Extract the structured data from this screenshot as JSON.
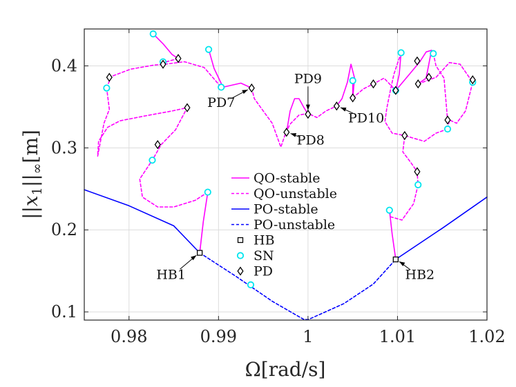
{
  "chart_data": {
    "type": "line",
    "title": "",
    "xlabel": "Ω[rad/s]",
    "ylabel": "||x1||∞[m]",
    "ylabel_parts": [
      "||",
      "x",
      "1",
      "||",
      "∞",
      "[m]"
    ],
    "xlim": [
      0.975,
      1.02
    ],
    "ylim": [
      0.09,
      0.445
    ],
    "x_ticks": [
      0.98,
      0.99,
      1.0,
      1.01,
      1.02
    ],
    "x_tick_labels": [
      "0.98",
      "0.99",
      "1",
      "1.01",
      "1.02"
    ],
    "y_ticks": [
      0.1,
      0.2,
      0.3,
      0.4
    ],
    "y_tick_labels": [
      "0.1",
      "0.2",
      "0.3",
      "0.4"
    ],
    "grid": true,
    "legend_position": "center",
    "colors": {
      "qo": "#ff00ff",
      "po": "#0000ff",
      "sn": "#00e5ee",
      "marker": "#000000",
      "axis": "#262626"
    },
    "legend": [
      {
        "label": "QO-stable",
        "kind": "line",
        "color": "#ff00ff",
        "dashed": false
      },
      {
        "label": "QO-unstable",
        "kind": "line",
        "color": "#ff00ff",
        "dashed": true
      },
      {
        "label": "PO-stable",
        "kind": "line",
        "color": "#0000ff",
        "dashed": false
      },
      {
        "label": "PO-unstable",
        "kind": "line",
        "color": "#0000ff",
        "dashed": true
      },
      {
        "label": "HB",
        "kind": "square",
        "color": "#000000"
      },
      {
        "label": "SN",
        "kind": "circle",
        "color": "#00e5ee"
      },
      {
        "label": "PD",
        "kind": "diamond",
        "color": "#000000"
      }
    ],
    "series": [
      {
        "name": "PO-stable (left)",
        "style": "solid",
        "color": "#0000ff",
        "points": [
          [
            0.975,
            0.249
          ],
          [
            0.98,
            0.2294
          ],
          [
            0.985,
            0.2049
          ],
          [
            0.9879,
            0.172
          ]
        ]
      },
      {
        "name": "PO-unstable",
        "style": "dashed",
        "color": "#0000ff",
        "points": [
          [
            0.9879,
            0.172
          ],
          [
            0.992,
            0.143
          ],
          [
            0.996,
            0.113
          ],
          [
            0.9995,
            0.091
          ],
          [
            1.0,
            0.0905
          ],
          [
            1.004,
            0.11
          ],
          [
            1.0073,
            0.134
          ],
          [
            1.0098,
            0.164
          ]
        ]
      },
      {
        "name": "PO-stable (right)",
        "style": "solid",
        "color": "#0000ff",
        "points": [
          [
            1.0098,
            0.164
          ],
          [
            1.015,
            0.202
          ],
          [
            1.02,
            0.24
          ]
        ]
      },
      {
        "name": "QO-stable L1",
        "style": "solid",
        "color": "#ff00ff",
        "points": [
          [
            0.9879,
            0.172
          ],
          [
            0.9883,
            0.21
          ],
          [
            0.9888,
            0.246
          ]
        ]
      },
      {
        "name": "QO-unstable L1",
        "style": "dashed",
        "color": "#ff00ff",
        "points": [
          [
            0.9888,
            0.246
          ],
          [
            0.9874,
            0.236
          ],
          [
            0.985,
            0.228
          ],
          [
            0.9832,
            0.228
          ],
          [
            0.9815,
            0.24
          ],
          [
            0.9812,
            0.262
          ],
          [
            0.9826,
            0.285
          ],
          [
            0.9836,
            0.304
          ],
          [
            0.9852,
            0.322
          ],
          [
            0.9865,
            0.349
          ],
          [
            0.9848,
            0.345
          ],
          [
            0.9818,
            0.339
          ],
          [
            0.979,
            0.333
          ],
          [
            0.9776,
            0.325
          ],
          [
            0.9766,
            0.308
          ],
          [
            0.9765,
            0.29
          ],
          [
            0.9772,
            0.33
          ],
          [
            0.9778,
            0.347
          ],
          [
            0.9775,
            0.373
          ]
        ]
      },
      {
        "name": "QO-unstable L2",
        "style": "dashed",
        "color": "#ff00ff",
        "points": [
          [
            0.9775,
            0.373
          ],
          [
            0.978,
            0.387
          ],
          [
            0.9802,
            0.396
          ],
          [
            0.9828,
            0.401
          ],
          [
            0.984,
            0.402
          ],
          [
            0.9862,
            0.405
          ],
          [
            0.9884,
            0.398
          ],
          [
            0.9903,
            0.374
          ]
        ]
      },
      {
        "name": "QO-stable L2",
        "style": "solid",
        "color": "#ff00ff",
        "points": [
          [
            0.9827,
            0.439
          ],
          [
            0.9838,
            0.427
          ],
          [
            0.9848,
            0.414
          ],
          [
            0.9855,
            0.409
          ]
        ]
      },
      {
        "name": "QO-unstable L3",
        "style": "dashed",
        "color": "#ff00ff",
        "points": [
          [
            0.9855,
            0.409
          ],
          [
            0.9842,
            0.405
          ],
          [
            0.984,
            0.402
          ]
        ]
      },
      {
        "name": "QO-stable L3",
        "style": "solid",
        "color": "#ff00ff",
        "points": [
          [
            0.9889,
            0.42
          ],
          [
            0.9895,
            0.397
          ],
          [
            0.9905,
            0.374
          ]
        ]
      },
      {
        "name": "QO-stable L4",
        "style": "solid",
        "color": "#ff00ff",
        "points": [
          [
            0.9905,
            0.374
          ],
          [
            0.9925,
            0.379
          ],
          [
            0.9937,
            0.373
          ]
        ]
      },
      {
        "name": "QO-unstable L4",
        "style": "dashed",
        "color": "#ff00ff",
        "points": [
          [
            0.9937,
            0.373
          ],
          [
            0.994,
            0.36
          ],
          [
            0.995,
            0.345
          ],
          [
            0.996,
            0.33
          ],
          [
            0.997,
            0.3
          ]
        ]
      },
      {
        "name": "QO-unstable L5",
        "style": "dashed",
        "color": "#ff00ff",
        "points": [
          [
            0.997,
            0.302
          ],
          [
            0.9975,
            0.318
          ],
          [
            0.998,
            0.329
          ],
          [
            0.999,
            0.34
          ],
          [
            1.0,
            0.342
          ],
          [
            1.001,
            0.337
          ],
          [
            1.002,
            0.345
          ],
          [
            1.0032,
            0.351
          ]
        ]
      },
      {
        "name": "QO-stable L5",
        "style": "solid",
        "color": "#ff00ff",
        "points": [
          [
            0.9976,
            0.319
          ],
          [
            0.998,
            0.345
          ],
          [
            0.9985,
            0.36
          ],
          [
            0.999,
            0.36
          ],
          [
            0.9995,
            0.35
          ],
          [
            1.0,
            0.341
          ]
        ]
      },
      {
        "name": "QO-stable L6",
        "style": "solid",
        "color": "#ff00ff",
        "points": [
          [
            1.0032,
            0.351
          ],
          [
            1.0038,
            0.36
          ],
          [
            1.0044,
            0.38
          ],
          [
            1.0048,
            0.402
          ],
          [
            1.0052,
            0.385
          ],
          [
            1.005,
            0.361
          ]
        ]
      },
      {
        "name": "QO-stable L7",
        "style": "solid",
        "color": "#ff00ff",
        "points": [
          [
            1.005,
            0.382
          ],
          [
            1.005,
            0.368
          ],
          [
            1.005,
            0.361
          ]
        ]
      },
      {
        "name": "QO-unstable L6",
        "style": "dashed",
        "color": "#ff00ff",
        "points": [
          [
            1.005,
            0.361
          ],
          [
            1.0062,
            0.372
          ],
          [
            1.0073,
            0.378
          ],
          [
            1.0085,
            0.385
          ],
          [
            1.0098,
            0.37
          ]
        ]
      },
      {
        "name": "QO-stable L8",
        "style": "solid",
        "color": "#ff00ff",
        "points": [
          [
            1.0098,
            0.37
          ],
          [
            1.0102,
            0.39
          ],
          [
            1.0104,
            0.416
          ]
        ]
      },
      {
        "name": "QO-stable L9",
        "style": "solid",
        "color": "#ff00ff",
        "points": [
          [
            1.0098,
            0.37
          ],
          [
            1.0115,
            0.392
          ],
          [
            1.0125,
            0.405
          ],
          [
            1.0132,
            0.417
          ],
          [
            1.0138,
            0.419
          ],
          [
            1.0132,
            0.385
          ],
          [
            1.0123,
            0.378
          ]
        ]
      },
      {
        "name": "QO-unstable L7",
        "style": "dashed",
        "color": "#ff00ff",
        "points": [
          [
            1.0123,
            0.378
          ],
          [
            1.0143,
            0.386
          ],
          [
            1.0158,
            0.404
          ],
          [
            1.017,
            0.402
          ],
          [
            1.0184,
            0.38
          ],
          [
            1.0176,
            0.345
          ],
          [
            1.0166,
            0.33
          ],
          [
            1.0158,
            0.334
          ],
          [
            1.0156,
            0.323
          ]
        ]
      },
      {
        "name": "QO-unstable L8",
        "style": "dashed",
        "color": "#ff00ff",
        "points": [
          [
            1.0156,
            0.323
          ],
          [
            1.0143,
            0.318
          ],
          [
            1.013,
            0.308
          ],
          [
            1.0108,
            0.315
          ],
          [
            1.0106,
            0.295
          ],
          [
            1.0115,
            0.282
          ],
          [
            1.0122,
            0.271
          ],
          [
            1.0123,
            0.255
          ],
          [
            1.0118,
            0.232
          ],
          [
            1.0105,
            0.212
          ],
          [
            1.0092,
            0.216
          ],
          [
            1.0091,
            0.224
          ]
        ]
      },
      {
        "name": "QO-stable L10",
        "style": "solid",
        "color": "#ff00ff",
        "points": [
          [
            1.0091,
            0.224
          ],
          [
            1.0094,
            0.195
          ],
          [
            1.0098,
            0.164
          ]
        ]
      },
      {
        "name": "QO-unstable L9",
        "style": "dashed",
        "color": "#ff00ff",
        "points": [
          [
            1.014,
            0.415
          ],
          [
            1.0143,
            0.4
          ],
          [
            1.0152,
            0.385
          ],
          [
            1.0156,
            0.333
          ]
        ]
      },
      {
        "name": "QO-unstable L10",
        "style": "dashed",
        "color": "#ff00ff",
        "points": [
          [
            1.0104,
            0.416
          ],
          [
            1.0096,
            0.39
          ],
          [
            1.0092,
            0.37
          ],
          [
            1.0088,
            0.348
          ],
          [
            1.0086,
            0.332
          ],
          [
            1.0094,
            0.318
          ],
          [
            1.0108,
            0.315
          ]
        ]
      }
    ],
    "markers": {
      "HB": [
        [
          0.9879,
          0.172
        ],
        [
          1.0098,
          0.164
        ]
      ],
      "SN": [
        [
          0.9827,
          0.439
        ],
        [
          0.9775,
          0.373
        ],
        [
          0.9838,
          0.405
        ],
        [
          0.9826,
          0.285
        ],
        [
          0.9888,
          0.246
        ],
        [
          0.9889,
          0.42
        ],
        [
          0.9903,
          0.374
        ],
        [
          0.9936,
          0.133
        ],
        [
          1.005,
          0.382
        ],
        [
          1.0098,
          0.37
        ],
        [
          1.0104,
          0.416
        ],
        [
          1.014,
          0.415
        ],
        [
          1.0184,
          0.38
        ],
        [
          1.0156,
          0.323
        ],
        [
          1.0123,
          0.255
        ],
        [
          1.0091,
          0.224
        ]
      ],
      "PD": [
        [
          0.9778,
          0.386
        ],
        [
          0.9838,
          0.402
        ],
        [
          0.9855,
          0.409
        ],
        [
          0.9865,
          0.349
        ],
        [
          0.9832,
          0.304
        ],
        [
          0.9937,
          0.373
        ],
        [
          0.9976,
          0.319
        ],
        [
          1.0,
          0.341
        ],
        [
          1.0032,
          0.351
        ],
        [
          1.005,
          0.361
        ],
        [
          1.0073,
          0.378
        ],
        [
          1.0098,
          0.37
        ],
        [
          1.0122,
          0.406
        ],
        [
          1.0123,
          0.378
        ],
        [
          1.0135,
          0.386
        ],
        [
          1.0184,
          0.383
        ],
        [
          1.0156,
          0.334
        ],
        [
          1.0108,
          0.315
        ],
        [
          1.0122,
          0.271
        ]
      ]
    },
    "annotations": [
      {
        "text": "HB1",
        "x": 0.9879,
        "y": 0.172,
        "label_x": 0.9847,
        "label_y": 0.146
      },
      {
        "text": "HB2",
        "x": 1.0098,
        "y": 0.164,
        "label_x": 1.0125,
        "label_y": 0.146
      },
      {
        "text": "PD7",
        "x": 0.9937,
        "y": 0.373,
        "label_x": 0.9903,
        "label_y": 0.356
      },
      {
        "text": "PD8",
        "x": 0.9976,
        "y": 0.319,
        "label_x": 1.0003,
        "label_y": 0.31
      },
      {
        "text": "PD9",
        "x": 1.0,
        "y": 0.341,
        "label_x": 1.0,
        "label_y": 0.385
      },
      {
        "text": "PD10",
        "x": 1.0032,
        "y": 0.351,
        "label_x": 1.0065,
        "label_y": 0.337
      }
    ]
  }
}
